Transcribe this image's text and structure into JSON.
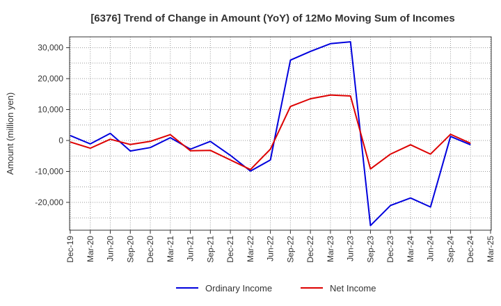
{
  "chart_data": {
    "type": "line",
    "title": "[6376]  Trend of Change in Amount (YoY) of 12Mo Moving Sum of Incomes",
    "xlabel": "",
    "ylabel": "Amount (million yen)",
    "categories": [
      "Dec-19",
      "Mar-20",
      "Jun-20",
      "Sep-20",
      "Dec-20",
      "Mar-21",
      "Jun-21",
      "Sep-21",
      "Dec-21",
      "Mar-22",
      "Jun-22",
      "Sep-22",
      "Dec-22",
      "Mar-23",
      "Jun-23",
      "Sep-23",
      "Dec-23",
      "Mar-24",
      "Jun-24",
      "Sep-24",
      "Dec-24",
      "Mar-25"
    ],
    "ylim": [
      -29000,
      33500
    ],
    "yticks": [
      -20000,
      -10000,
      0,
      10000,
      20000,
      30000
    ],
    "ytick_labels": [
      "-20,000",
      "-10,000",
      "0",
      "10,000",
      "20,000",
      "30,000"
    ],
    "grid": true,
    "legend_position": "bottom",
    "series": [
      {
        "name": "Ordinary Income",
        "color": "#0000dd",
        "values": [
          1600,
          -1100,
          2300,
          -3400,
          -2300,
          900,
          -2800,
          -300,
          -4800,
          -9900,
          -6300,
          26000,
          28800,
          31300,
          31900,
          -27500,
          -21000,
          -18600,
          -21500,
          1300,
          -1400,
          null
        ]
      },
      {
        "name": "Net Income",
        "color": "#dd0000",
        "values": [
          -500,
          -2500,
          400,
          -1300,
          -300,
          1900,
          -3300,
          -3200,
          -6300,
          -9400,
          -2800,
          11000,
          13500,
          14700,
          14400,
          -9200,
          -4400,
          -1400,
          -4400,
          2000,
          -900,
          null
        ]
      }
    ]
  }
}
